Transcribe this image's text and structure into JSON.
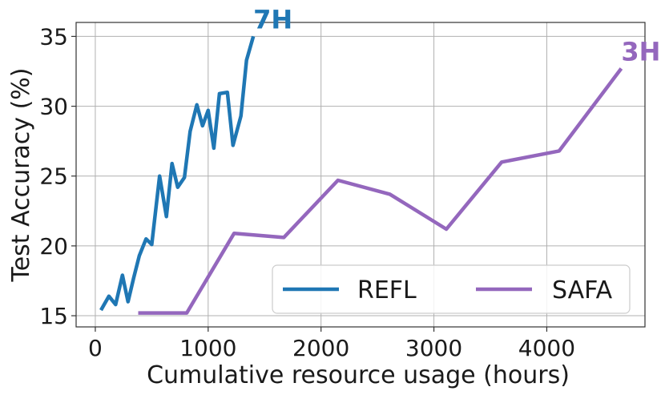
{
  "chart_data": {
    "type": "line",
    "title": "",
    "xlabel": "Cumulative resource usage (hours)",
    "ylabel": "Test Accuracy (%)",
    "xlim": [
      -170,
      4870
    ],
    "ylim": [
      14.2,
      36
    ],
    "xticks": [
      0,
      1000,
      2000,
      3000,
      4000
    ],
    "xtick_labels": [
      "0",
      "1000",
      "2000",
      "3000",
      "4000"
    ],
    "yticks": [
      15,
      20,
      25,
      30,
      35
    ],
    "ytick_labels": [
      "15",
      "20",
      "25",
      "30",
      "35"
    ],
    "grid": true,
    "legend": {
      "placement": "lower-right",
      "columns": 2
    },
    "series": [
      {
        "name": "REFL",
        "color": "#1f77b4",
        "end_label": "7H",
        "x": [
          50,
          120,
          180,
          240,
          290,
          340,
          390,
          450,
          500,
          570,
          630,
          680,
          730,
          790,
          840,
          900,
          950,
          1000,
          1050,
          1100,
          1170,
          1220,
          1290,
          1340,
          1400
        ],
        "y": [
          15.4,
          16.4,
          15.8,
          17.9,
          16.0,
          17.7,
          19.3,
          20.5,
          20.1,
          25.0,
          22.1,
          25.9,
          24.2,
          24.9,
          28.2,
          30.1,
          28.6,
          29.7,
          27.0,
          30.9,
          31.0,
          27.2,
          29.3,
          33.3,
          35.0
        ]
      },
      {
        "name": "SAFA",
        "color": "#9467bd",
        "end_label": "3H",
        "x": [
          380,
          810,
          1230,
          1670,
          2150,
          2610,
          3110,
          3600,
          4110,
          4660
        ],
        "y": [
          15.2,
          15.2,
          20.9,
          20.6,
          24.7,
          23.7,
          21.2,
          26.0,
          26.8,
          32.7
        ]
      }
    ]
  }
}
